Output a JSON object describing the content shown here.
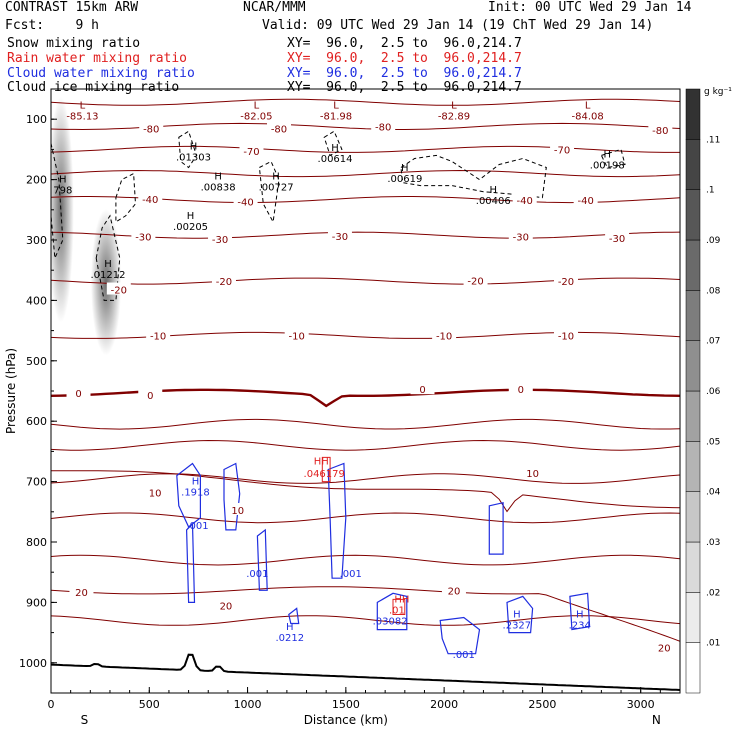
{
  "header": {
    "model": "CONTRAST 15km ARW",
    "center": "NCAR/MMM",
    "init": "Init: 00 UTC Wed 29 Jan 14",
    "fcst": "Fcst:    9 h",
    "valid": "Valid: 09 UTC Wed 29 Jan 14 (19 ChT Wed 29 Jan 14)",
    "fields": [
      {
        "label": "Snow mixing ratio",
        "xy": "XY=  96.0,  2.5 to  96.0,214.7",
        "color": "#000000"
      },
      {
        "label": "Rain water mixing ratio",
        "xy": "XY=  96.0,  2.5 to  96.0,214.7",
        "color": "#e02020"
      },
      {
        "label": "Cloud water mixing ratio",
        "xy": "XY=  96.0,  2.5 to  96.0,214.7",
        "color": "#1f2ee0"
      },
      {
        "label": "Cloud ice mixing ratio",
        "xy": "XY=  96.0,  2.5 to  96.0,214.7",
        "color": "#000000"
      }
    ]
  },
  "chart_data": {
    "type": "contour",
    "xlabel": "Distance (km)",
    "ylabel": "Pressure (hPa)",
    "xlim": [
      0,
      3200
    ],
    "ylim": [
      1050,
      50
    ],
    "x_ticks": [
      0,
      500,
      1000,
      1500,
      2000,
      2500,
      3000
    ],
    "y_ticks": [
      100,
      200,
      300,
      400,
      500,
      600,
      700,
      800,
      900,
      1000
    ],
    "left_end_label": "S",
    "right_end_label": "N",
    "colorbar": {
      "unit": "g kg⁻¹",
      "ticks": [
        ".01",
        ".02",
        ".03",
        ".04",
        ".05",
        ".06",
        ".07",
        ".08",
        ".09",
        ".1",
        ".11"
      ],
      "max": 0.12
    },
    "temperature_contours": {
      "color": "#800000",
      "levels": [
        -80,
        -70,
        -40,
        -30,
        -20,
        -10,
        0,
        10,
        20
      ],
      "labels": [
        {
          "text": "-80",
          "x": 510,
          "p": 115
        },
        {
          "text": "-80",
          "x": 1160,
          "p": 115
        },
        {
          "text": "-80",
          "x": 1690,
          "p": 112
        },
        {
          "text": "-80",
          "x": 3100,
          "p": 118
        },
        {
          "text": "-70",
          "x": 1020,
          "p": 153
        },
        {
          "text": "-70",
          "x": 2600,
          "p": 150
        },
        {
          "text": "-40",
          "x": 505,
          "p": 232
        },
        {
          "text": "-40",
          "x": 990,
          "p": 236
        },
        {
          "text": "-40",
          "x": 2410,
          "p": 234
        },
        {
          "text": "-40",
          "x": 2720,
          "p": 234
        },
        {
          "text": "-30",
          "x": 470,
          "p": 294
        },
        {
          "text": "-30",
          "x": 860,
          "p": 298
        },
        {
          "text": "-30",
          "x": 1470,
          "p": 293
        },
        {
          "text": "-30",
          "x": 2390,
          "p": 294
        },
        {
          "text": "-30",
          "x": 2880,
          "p": 297
        },
        {
          "text": "-20",
          "x": 345,
          "p": 382
        },
        {
          "text": "-20",
          "x": 880,
          "p": 368
        },
        {
          "text": "-20",
          "x": 2160,
          "p": 367
        },
        {
          "text": "-20",
          "x": 2620,
          "p": 368
        },
        {
          "text": "-10",
          "x": 545,
          "p": 458
        },
        {
          "text": "-10",
          "x": 1250,
          "p": 458
        },
        {
          "text": "-10",
          "x": 2000,
          "p": 458
        },
        {
          "text": "-10",
          "x": 2620,
          "p": 458
        },
        {
          "text": "0",
          "x": 140,
          "p": 553
        },
        {
          "text": "0",
          "x": 505,
          "p": 557
        },
        {
          "text": "0",
          "x": 1890,
          "p": 547
        },
        {
          "text": "0",
          "x": 2390,
          "p": 547
        },
        {
          "text": "10",
          "x": 530,
          "p": 718
        },
        {
          "text": "10",
          "x": 950,
          "p": 747
        },
        {
          "text": "10",
          "x": 2450,
          "p": 686
        },
        {
          "text": "20",
          "x": 155,
          "p": 883
        },
        {
          "text": "20",
          "x": 890,
          "p": 905
        },
        {
          "text": "20",
          "x": 2050,
          "p": 880
        },
        {
          "text": "20",
          "x": 3120,
          "p": 975
        }
      ]
    },
    "extrema": [
      {
        "type": "L",
        "value": "-85.13",
        "x": 160,
        "p": 82,
        "color": "#800000"
      },
      {
        "type": "L",
        "value": "-82.05",
        "x": 1045,
        "p": 82,
        "color": "#800000"
      },
      {
        "type": "L",
        "value": "-81.98",
        "x": 1450,
        "p": 82,
        "color": "#800000"
      },
      {
        "type": "L",
        "value": "-82.89",
        "x": 2050,
        "p": 82,
        "color": "#800000"
      },
      {
        "type": "L",
        "value": "-84.08",
        "x": 2730,
        "p": 82,
        "color": "#800000"
      },
      {
        "type": "H",
        "value": ".01303",
        "x": 725,
        "p": 150,
        "color": "#000000"
      },
      {
        "type": "H",
        "value": ".00614",
        "x": 1445,
        "p": 153,
        "color": "#000000"
      },
      {
        "type": "H",
        "value": ".00198",
        "x": 2830,
        "p": 163,
        "color": "#000000"
      },
      {
        "type": "H",
        "value": ".00619",
        "x": 1800,
        "p": 186,
        "color": "#000000"
      },
      {
        "type": "H",
        "value": ".00838",
        "x": 850,
        "p": 200,
        "color": "#000000"
      },
      {
        "type": "H",
        "value": ".00727",
        "x": 1145,
        "p": 200,
        "color": "#000000"
      },
      {
        "type": "H",
        "value": ".00406",
        "x": 2250,
        "p": 222,
        "color": "#000000"
      },
      {
        "type": "H",
        "value": ".00205",
        "x": 710,
        "p": 265,
        "color": "#000000"
      },
      {
        "type": "H",
        "value": ".01212",
        "x": 290,
        "p": 345,
        "color": "#000000"
      },
      {
        "type": "H",
        "value": "798",
        "x": 60,
        "p": 205,
        "color": "#000000"
      },
      {
        "type": "H",
        "value": ".1918",
        "x": 735,
        "p": 705,
        "color": "#1f2ee0"
      },
      {
        "type": "",
        "value": ".001",
        "x": 745,
        "p": 760,
        "color": "#1f2ee0"
      },
      {
        "type": "",
        "value": ".001",
        "x": 1050,
        "p": 840,
        "color": "#1f2ee0"
      },
      {
        "type": "",
        "value": ".001",
        "x": 1525,
        "p": 840,
        "color": "#1f2ee0"
      },
      {
        "type": "H",
        "value": ".0212",
        "x": 1215,
        "p": 946,
        "color": "#1f2ee0"
      },
      {
        "type": "H",
        "value": ".2327",
        "x": 2370,
        "p": 925,
        "color": "#1f2ee0"
      },
      {
        "type": "H",
        "value": ".234",
        "x": 2690,
        "p": 925,
        "color": "#1f2ee0"
      },
      {
        "type": "",
        "value": ".001",
        "x": 2100,
        "p": 974,
        "color": "#1f2ee0"
      },
      {
        "type": "",
        "value": ".03082",
        "x": 1725,
        "p": 918,
        "color": "#1f2ee0"
      }
    ],
    "rain_labels": [
      {
        "text": "HH",
        "x": 1375,
        "p": 672
      },
      {
        "text": ".046179",
        "x": 1390,
        "p": 692
      },
      {
        "text": "HH",
        "x": 1785,
        "p": 900
      },
      {
        "text": ".01",
        "x": 1760,
        "p": 918
      }
    ]
  }
}
